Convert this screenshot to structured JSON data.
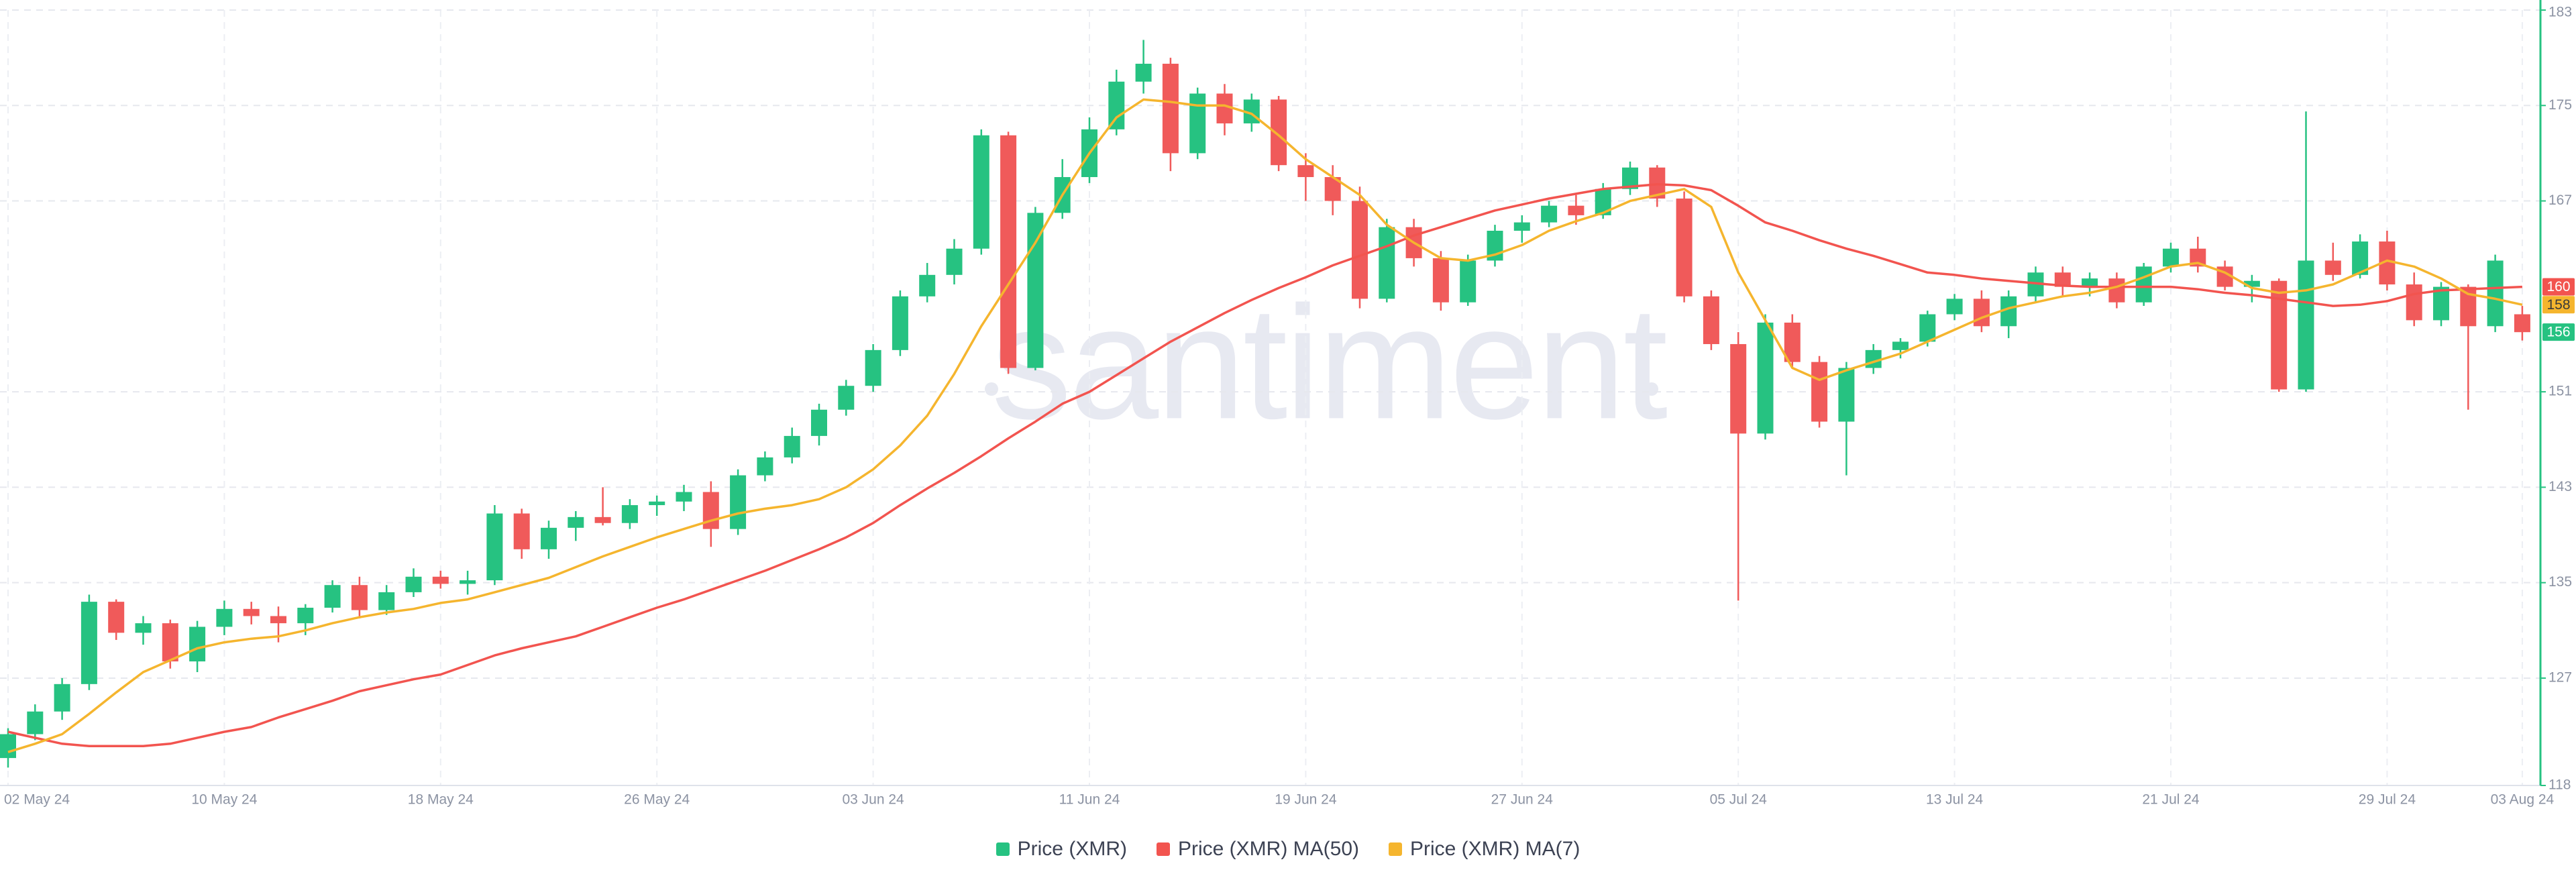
{
  "chart_data": {
    "type": "candlestick",
    "watermark": "santiment",
    "x": [
      "2024-05-02",
      "2024-05-03",
      "2024-05-04",
      "2024-05-05",
      "2024-05-06",
      "2024-05-07",
      "2024-05-08",
      "2024-05-09",
      "2024-05-10",
      "2024-05-11",
      "2024-05-12",
      "2024-05-13",
      "2024-05-14",
      "2024-05-15",
      "2024-05-16",
      "2024-05-17",
      "2024-05-18",
      "2024-05-19",
      "2024-05-20",
      "2024-05-21",
      "2024-05-22",
      "2024-05-23",
      "2024-05-24",
      "2024-05-25",
      "2024-05-26",
      "2024-05-27",
      "2024-05-28",
      "2024-05-29",
      "2024-05-30",
      "2024-05-31",
      "2024-06-01",
      "2024-06-02",
      "2024-06-03",
      "2024-06-04",
      "2024-06-05",
      "2024-06-06",
      "2024-06-07",
      "2024-06-08",
      "2024-06-09",
      "2024-06-10",
      "2024-06-11",
      "2024-06-12",
      "2024-06-13",
      "2024-06-14",
      "2024-06-15",
      "2024-06-16",
      "2024-06-17",
      "2024-06-18",
      "2024-06-19",
      "2024-06-20",
      "2024-06-21",
      "2024-06-22",
      "2024-06-23",
      "2024-06-24",
      "2024-06-25",
      "2024-06-26",
      "2024-06-27",
      "2024-06-28",
      "2024-06-29",
      "2024-06-30",
      "2024-07-01",
      "2024-07-02",
      "2024-07-03",
      "2024-07-04",
      "2024-07-05",
      "2024-07-06",
      "2024-07-07",
      "2024-07-08",
      "2024-07-09",
      "2024-07-10",
      "2024-07-11",
      "2024-07-12",
      "2024-07-13",
      "2024-07-14",
      "2024-07-15",
      "2024-07-16",
      "2024-07-17",
      "2024-07-18",
      "2024-07-19",
      "2024-07-20",
      "2024-07-21",
      "2024-07-22",
      "2024-07-23",
      "2024-07-24",
      "2024-07-25",
      "2024-07-26",
      "2024-07-27",
      "2024-07-28",
      "2024-07-29",
      "2024-07-30",
      "2024-07-31",
      "2024-08-01",
      "2024-08-02",
      "2024-08-03"
    ],
    "xticks": [
      {
        "value": "2024-05-02",
        "label": "02 May 24"
      },
      {
        "value": "2024-05-10",
        "label": "10 May 24"
      },
      {
        "value": "2024-05-18",
        "label": "18 May 24"
      },
      {
        "value": "2024-05-26",
        "label": "26 May 24"
      },
      {
        "value": "2024-06-03",
        "label": "03 Jun 24"
      },
      {
        "value": "2024-06-11",
        "label": "11 Jun 24"
      },
      {
        "value": "2024-06-19",
        "label": "19 Jun 24"
      },
      {
        "value": "2024-06-27",
        "label": "27 Jun 24"
      },
      {
        "value": "2024-07-05",
        "label": "05 Jul 24"
      },
      {
        "value": "2024-07-13",
        "label": "13 Jul 24"
      },
      {
        "value": "2024-07-21",
        "label": "21 Jul 24"
      },
      {
        "value": "2024-07-29",
        "label": "29 Jul 24"
      },
      {
        "value": "2024-08-03",
        "label": "03 Aug 24"
      }
    ],
    "ylim": [
      118,
      183
    ],
    "yticks": [
      118,
      127,
      135,
      143,
      151,
      167,
      175,
      183
    ],
    "grid": true,
    "axis_color": "#26c281",
    "series": [
      {
        "name": "Price (XMR)",
        "color": "#26c281",
        "down_color": "#f05a5a",
        "last_label": "156",
        "open": [
          120.3,
          122.3,
          124.2,
          126.5,
          133.4,
          130.8,
          131.6,
          128.4,
          131.3,
          132.8,
          132.2,
          131.6,
          132.9,
          134.8,
          132.7,
          134.2,
          135.5,
          134.9,
          135.2,
          140.8,
          137.8,
          139.6,
          140.5,
          140.0,
          141.5,
          141.8,
          142.6,
          139.5,
          144.0,
          145.5,
          147.3,
          149.5,
          151.5,
          154.5,
          159.0,
          160.8,
          163.0,
          172.5,
          153.0,
          166.0,
          169.0,
          173.0,
          177.0,
          178.5,
          171.0,
          176.0,
          173.5,
          175.5,
          170.0,
          169.0,
          167.0,
          158.8,
          164.8,
          162.2,
          158.5,
          162.0,
          164.5,
          165.2,
          166.6,
          165.8,
          168.0,
          169.8,
          167.2,
          159.0,
          155.0,
          147.5,
          156.8,
          153.5,
          148.5,
          153.0,
          154.5,
          155.2,
          157.5,
          158.8,
          156.5,
          159.0,
          161.0,
          159.8,
          160.5,
          158.5,
          161.5,
          163.0,
          161.5,
          159.8,
          160.3,
          151.2,
          162.0,
          160.8,
          163.6,
          160.0,
          157.0,
          159.8,
          156.5,
          157.5
        ],
        "high": [
          122.8,
          124.8,
          127.0,
          134.0,
          133.6,
          132.2,
          131.9,
          131.8,
          133.5,
          133.4,
          133.0,
          133.2,
          135.2,
          135.5,
          134.8,
          136.2,
          136.0,
          136.0,
          141.5,
          141.2,
          140.2,
          141.0,
          143.0,
          142.0,
          142.3,
          143.2,
          143.5,
          144.5,
          146.0,
          148.0,
          150.0,
          152.0,
          155.0,
          159.5,
          161.8,
          163.8,
          173.0,
          172.8,
          166.5,
          170.5,
          174.0,
          178.0,
          180.5,
          179.0,
          176.5,
          176.8,
          176.0,
          175.8,
          171.0,
          170.0,
          168.2,
          165.5,
          165.5,
          162.8,
          162.5,
          165.0,
          165.8,
          167.0,
          167.5,
          168.5,
          170.3,
          170.0,
          167.8,
          159.5,
          156.0,
          157.5,
          157.5,
          154.0,
          153.5,
          155.0,
          155.5,
          157.8,
          159.2,
          159.5,
          159.5,
          161.5,
          161.5,
          161.0,
          161.0,
          161.8,
          163.5,
          164.0,
          162.0,
          160.8,
          160.5,
          174.5,
          163.5,
          164.2,
          164.5,
          161.0,
          160.2,
          160.0,
          162.5,
          158.2
        ],
        "low": [
          119.5,
          121.8,
          123.5,
          126.0,
          130.2,
          129.8,
          127.8,
          127.5,
          130.6,
          131.5,
          130.0,
          130.6,
          132.5,
          132.0,
          132.3,
          133.8,
          134.5,
          134.0,
          134.8,
          137.0,
          137.0,
          138.5,
          139.8,
          139.5,
          140.6,
          141.0,
          138.0,
          139.0,
          143.5,
          145.0,
          146.5,
          149.0,
          151.0,
          154.0,
          158.5,
          160.0,
          162.5,
          152.5,
          152.8,
          165.5,
          168.5,
          172.5,
          176.0,
          169.5,
          170.5,
          172.5,
          172.8,
          169.5,
          167.0,
          165.8,
          158.0,
          158.5,
          161.5,
          157.8,
          158.2,
          161.5,
          163.5,
          164.8,
          165.0,
          165.5,
          167.5,
          166.5,
          158.5,
          154.5,
          133.5,
          147.0,
          153.0,
          148.0,
          144.0,
          152.5,
          153.8,
          154.8,
          157.0,
          156.0,
          155.5,
          158.5,
          159.0,
          159.0,
          158.0,
          158.2,
          161.0,
          161.0,
          159.5,
          158.5,
          151.0,
          151.0,
          160.3,
          160.5,
          159.5,
          156.5,
          156.5,
          149.5,
          156.0,
          155.3
        ],
        "close": [
          122.3,
          124.2,
          126.5,
          133.4,
          130.8,
          131.6,
          128.4,
          131.3,
          132.8,
          132.2,
          131.6,
          132.9,
          134.8,
          132.7,
          134.2,
          135.5,
          134.9,
          135.2,
          140.8,
          137.8,
          139.6,
          140.5,
          140.0,
          141.5,
          141.8,
          142.6,
          139.5,
          144.0,
          145.5,
          147.3,
          149.5,
          151.5,
          154.5,
          159.0,
          160.8,
          163.0,
          172.5,
          153.0,
          166.0,
          169.0,
          173.0,
          177.0,
          178.5,
          171.0,
          176.0,
          173.5,
          175.5,
          170.0,
          169.0,
          167.0,
          158.8,
          164.8,
          162.2,
          158.5,
          162.0,
          164.5,
          165.2,
          166.6,
          165.8,
          168.0,
          169.8,
          167.2,
          159.0,
          155.0,
          147.5,
          156.8,
          153.5,
          148.5,
          153.0,
          154.5,
          155.2,
          157.5,
          158.8,
          156.5,
          159.0,
          161.0,
          159.8,
          160.5,
          158.5,
          161.5,
          163.0,
          161.5,
          159.8,
          160.3,
          151.2,
          162.0,
          160.8,
          163.6,
          160.0,
          157.0,
          159.8,
          156.5,
          162.0,
          156.0
        ]
      },
      {
        "name": "Price (XMR) MA(50)",
        "color": "#f2544f",
        "last_label": "160",
        "values": [
          122.5,
          122.0,
          121.5,
          121.3,
          121.3,
          121.3,
          121.5,
          122.0,
          122.5,
          122.9,
          123.7,
          124.4,
          125.1,
          125.9,
          126.4,
          126.9,
          127.3,
          128.1,
          128.9,
          129.5,
          130.0,
          130.5,
          131.3,
          132.1,
          132.9,
          133.6,
          134.4,
          135.2,
          136.0,
          136.9,
          137.8,
          138.8,
          140.0,
          141.5,
          142.9,
          144.2,
          145.6,
          147.1,
          148.5,
          150.0,
          151.0,
          152.4,
          153.8,
          155.2,
          156.4,
          157.6,
          158.7,
          159.7,
          160.6,
          161.6,
          162.4,
          163.2,
          164.1,
          164.8,
          165.5,
          166.2,
          166.7,
          167.2,
          167.6,
          168.0,
          168.2,
          168.4,
          168.3,
          167.9,
          166.6,
          165.2,
          164.5,
          163.7,
          163.0,
          162.4,
          161.7,
          161.0,
          160.8,
          160.5,
          160.3,
          160.1,
          159.9,
          159.8,
          159.8,
          159.8,
          159.8,
          159.6,
          159.3,
          159.1,
          158.8,
          158.5,
          158.2,
          158.3,
          158.6,
          159.2,
          159.5,
          159.6,
          159.7,
          159.8
        ]
      },
      {
        "name": "Price (XMR) MA(7)",
        "color": "#f5b52e",
        "last_label": "158",
        "values": [
          120.8,
          121.5,
          122.3,
          124.0,
          125.8,
          127.5,
          128.5,
          129.5,
          130.0,
          130.3,
          130.5,
          131.0,
          131.6,
          132.1,
          132.5,
          132.8,
          133.3,
          133.6,
          134.2,
          134.8,
          135.4,
          136.3,
          137.2,
          138.0,
          138.8,
          139.5,
          140.2,
          140.8,
          141.2,
          141.5,
          142.0,
          143.0,
          144.5,
          146.5,
          149.0,
          152.5,
          156.5,
          160.0,
          163.5,
          167.5,
          171.0,
          174.0,
          175.5,
          175.3,
          175.0,
          175.0,
          174.3,
          172.5,
          170.5,
          169.0,
          167.5,
          165.0,
          163.5,
          162.2,
          162.0,
          162.5,
          163.3,
          164.5,
          165.3,
          166.0,
          167.0,
          167.5,
          168.0,
          166.5,
          161.0,
          157.0,
          153.0,
          152.0,
          152.8,
          153.5,
          154.2,
          155.2,
          156.2,
          157.2,
          158.0,
          158.5,
          159.0,
          159.3,
          159.8,
          160.6,
          161.5,
          161.8,
          161.0,
          159.7,
          159.3,
          159.5,
          160.0,
          161.0,
          162.0,
          161.5,
          160.5,
          159.2,
          158.8,
          158.3
        ]
      }
    ]
  }
}
